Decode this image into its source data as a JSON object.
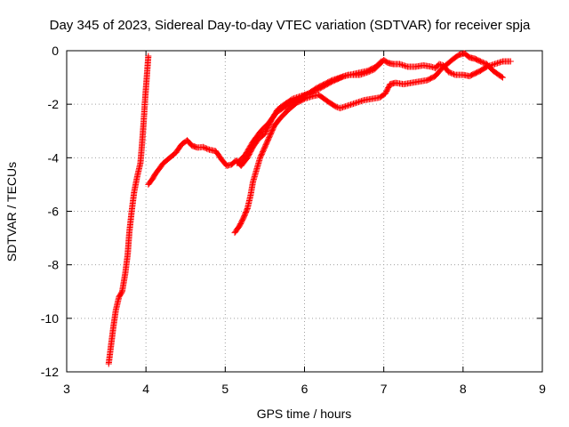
{
  "chart_data": {
    "type": "scatter",
    "title": "Day 345 of 2023, Sidereal Day-to-day VTEC variation (SDTVAR) for receiver spja",
    "xlabel": "GPS time / hours",
    "ylabel": "SDTVAR / TECUs",
    "xlim": [
      3,
      9
    ],
    "ylim": [
      -12,
      0
    ],
    "x_ticks": [
      "3",
      "4",
      "5",
      "6",
      "7",
      "8",
      "9"
    ],
    "y_ticks": [
      "0",
      "-2",
      "-4",
      "-6",
      "-8",
      "-10",
      "-12"
    ],
    "grid": true,
    "marker": "+",
    "series": [
      {
        "name": "spja",
        "color": "#ff0000",
        "segments": [
          [
            [
              3.53,
              -11.7
            ],
            [
              3.56,
              -11.0
            ],
            [
              3.59,
              -10.3
            ],
            [
              3.62,
              -9.7
            ],
            [
              3.66,
              -9.2
            ],
            [
              3.7,
              -9.0
            ],
            [
              3.74,
              -8.3
            ],
            [
              3.77,
              -7.6
            ],
            [
              3.79,
              -6.8
            ],
            [
              3.82,
              -6.0
            ],
            [
              3.85,
              -5.3
            ],
            [
              3.89,
              -4.7
            ],
            [
              3.93,
              -4.2
            ],
            [
              3.95,
              -3.5
            ],
            [
              3.97,
              -2.7
            ],
            [
              3.99,
              -1.8
            ],
            [
              4.01,
              -1.0
            ],
            [
              4.03,
              -0.2
            ]
          ],
          [
            [
              4.03,
              -5.0
            ],
            [
              4.08,
              -4.8
            ],
            [
              4.12,
              -4.6
            ],
            [
              4.17,
              -4.4
            ],
            [
              4.22,
              -4.2
            ],
            [
              4.3,
              -4.0
            ],
            [
              4.38,
              -3.8
            ],
            [
              4.45,
              -3.5
            ],
            [
              4.52,
              -3.35
            ],
            [
              4.58,
              -3.55
            ],
            [
              4.65,
              -3.62
            ],
            [
              4.72,
              -3.6
            ],
            [
              4.8,
              -3.7
            ],
            [
              4.88,
              -3.75
            ],
            [
              4.95,
              -4.05
            ],
            [
              5.02,
              -4.3
            ],
            [
              5.08,
              -4.25
            ],
            [
              5.14,
              -4.1
            ],
            [
              5.2,
              -4.3
            ],
            [
              5.28,
              -4.0
            ],
            [
              5.35,
              -3.6
            ],
            [
              5.42,
              -3.3
            ],
            [
              5.5,
              -3.1
            ],
            [
              5.58,
              -2.6
            ],
            [
              5.66,
              -2.2
            ],
            [
              5.75,
              -2.0
            ],
            [
              5.85,
              -1.8
            ],
            [
              5.95,
              -1.7
            ],
            [
              6.05,
              -1.6
            ],
            [
              6.15,
              -1.4
            ],
            [
              6.25,
              -1.25
            ],
            [
              6.35,
              -1.1
            ],
            [
              6.45,
              -1.0
            ],
            [
              6.55,
              -0.9
            ],
            [
              6.7,
              -0.9
            ],
            [
              6.8,
              -0.8
            ],
            [
              6.88,
              -0.7
            ],
            [
              6.95,
              -0.5
            ],
            [
              7.0,
              -0.35
            ],
            [
              7.05,
              -0.45
            ],
            [
              7.12,
              -0.5
            ],
            [
              7.2,
              -0.5
            ],
            [
              7.3,
              -0.6
            ],
            [
              7.4,
              -0.6
            ],
            [
              7.5,
              -0.55
            ],
            [
              7.6,
              -0.6
            ],
            [
              7.65,
              -0.65
            ],
            [
              7.7,
              -0.5
            ],
            [
              7.75,
              -0.55
            ],
            [
              7.82,
              -0.8
            ],
            [
              7.9,
              -0.9
            ],
            [
              8.0,
              -0.9
            ],
            [
              8.08,
              -0.95
            ],
            [
              8.15,
              -0.85
            ],
            [
              8.22,
              -0.75
            ],
            [
              8.3,
              -0.6
            ],
            [
              8.4,
              -0.5
            ],
            [
              8.5,
              -0.4
            ],
            [
              8.6,
              -0.4
            ]
          ],
          [
            [
              5.12,
              -6.8
            ],
            [
              5.18,
              -6.55
            ],
            [
              5.23,
              -6.25
            ],
            [
              5.28,
              -5.9
            ],
            [
              5.32,
              -5.4
            ],
            [
              5.35,
              -4.9
            ],
            [
              5.39,
              -4.5
            ],
            [
              5.44,
              -4.0
            ],
            [
              5.5,
              -3.6
            ],
            [
              5.56,
              -3.2
            ],
            [
              5.62,
              -2.8
            ],
            [
              5.7,
              -2.5
            ],
            [
              5.8,
              -2.2
            ],
            [
              5.9,
              -1.95
            ],
            [
              6.0,
              -1.8
            ],
            [
              6.1,
              -1.7
            ],
            [
              6.18,
              -1.65
            ],
            [
              6.25,
              -1.8
            ],
            [
              6.32,
              -1.95
            ],
            [
              6.4,
              -2.1
            ],
            [
              6.45,
              -2.15
            ],
            [
              6.55,
              -2.05
            ],
            [
              6.65,
              -1.95
            ],
            [
              6.75,
              -1.85
            ],
            [
              6.85,
              -1.8
            ],
            [
              6.95,
              -1.75
            ],
            [
              7.02,
              -1.6
            ],
            [
              7.08,
              -1.25
            ],
            [
              7.15,
              -1.2
            ],
            [
              7.25,
              -1.25
            ],
            [
              7.35,
              -1.2
            ],
            [
              7.45,
              -1.15
            ],
            [
              7.55,
              -1.1
            ],
            [
              7.65,
              -0.95
            ],
            [
              7.72,
              -0.7
            ],
            [
              7.8,
              -0.5
            ],
            [
              7.88,
              -0.3
            ],
            [
              7.95,
              -0.15
            ],
            [
              8.02,
              -0.1
            ],
            [
              8.08,
              -0.25
            ],
            [
              8.15,
              -0.3
            ],
            [
              8.22,
              -0.4
            ],
            [
              8.3,
              -0.5
            ],
            [
              8.38,
              -0.75
            ],
            [
              8.45,
              -0.9
            ],
            [
              8.5,
              -1.0
            ]
          ],
          [
            [
              5.15,
              -4.2
            ],
            [
              5.25,
              -3.9
            ],
            [
              5.35,
              -3.4
            ],
            [
              5.45,
              -3.0
            ],
            [
              5.55,
              -2.7
            ],
            [
              5.65,
              -2.3
            ],
            [
              5.75,
              -2.1
            ],
            [
              5.85,
              -1.9
            ],
            [
              5.95,
              -1.75
            ],
            [
              6.05,
              -1.6
            ],
            [
              6.2,
              -1.4
            ],
            [
              6.35,
              -1.15
            ],
            [
              6.5,
              -0.95
            ],
            [
              6.65,
              -0.85
            ],
            [
              6.8,
              -0.75
            ],
            [
              6.9,
              -0.6
            ],
            [
              6.97,
              -0.4
            ]
          ]
        ]
      }
    ]
  }
}
